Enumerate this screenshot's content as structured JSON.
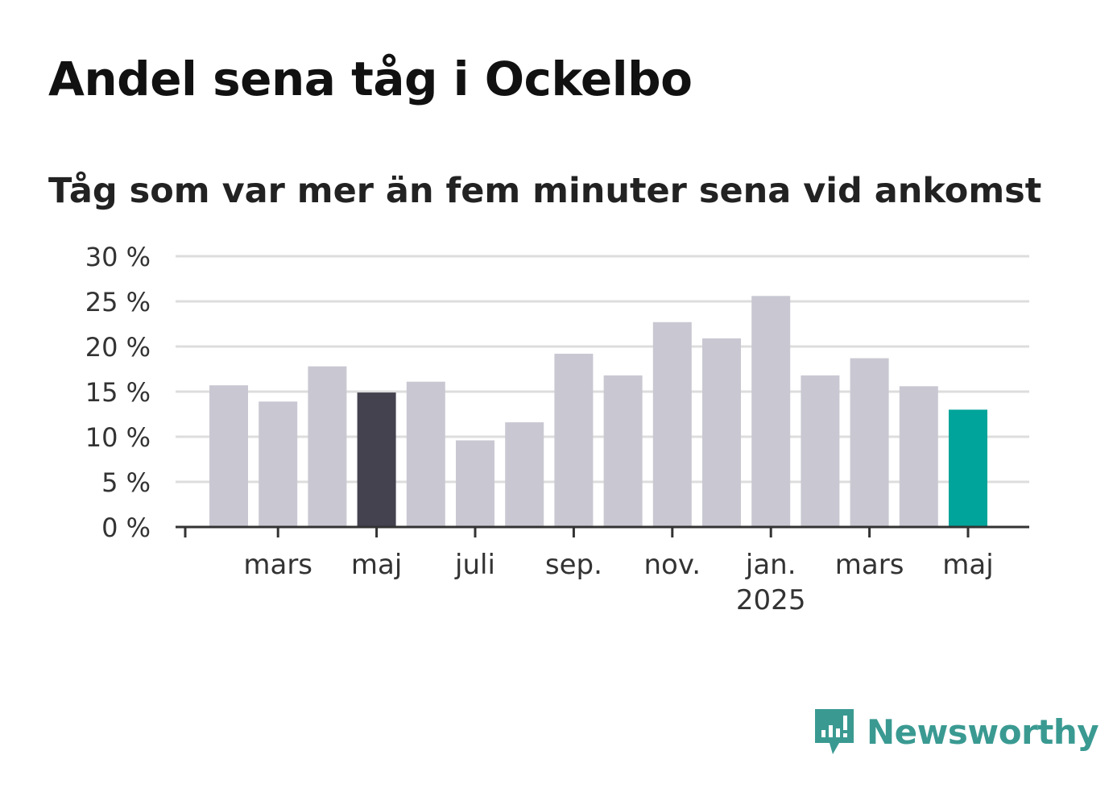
{
  "title": "Andel sena tåg i Ockelbo",
  "subtitle": "Tåg som var mer än fem minuter sena vid ankomst",
  "brand": {
    "name": "Newsworthy",
    "icon": "newsworthy-logo-icon",
    "color": "#3a9a92"
  },
  "chart_data": {
    "type": "bar",
    "categories": [
      "feb. 2024",
      "mars 2024",
      "apr. 2024",
      "maj 2024",
      "juni 2024",
      "juli 2024",
      "aug. 2024",
      "sep. 2024",
      "okt. 2024",
      "nov. 2024",
      "dec. 2024",
      "jan. 2025",
      "feb. 2025",
      "mars 2025",
      "apr. 2025",
      "maj 2025"
    ],
    "values": [
      15.7,
      13.9,
      17.8,
      14.9,
      16.1,
      9.6,
      11.6,
      19.2,
      16.8,
      22.7,
      20.9,
      25.6,
      16.8,
      18.7,
      15.6,
      13.0
    ],
    "ylim": [
      0,
      30
    ],
    "yticks": [
      0,
      5,
      10,
      15,
      20,
      25,
      30
    ],
    "ytick_labels": [
      "0 %",
      "5 %",
      "10 %",
      "15 %",
      "20 %",
      "25 %",
      "30 %"
    ],
    "xtick_labels": [
      {
        "label": "mars",
        "index": 1
      },
      {
        "label": "maj",
        "index": 3
      },
      {
        "label": "juli",
        "index": 5
      },
      {
        "label": "sep.",
        "index": 7
      },
      {
        "label": "nov.",
        "index": 9
      },
      {
        "label": "jan.",
        "sublabel": "2025",
        "index": 11
      },
      {
        "label": "mars",
        "index": 13
      },
      {
        "label": "maj",
        "index": 15
      }
    ],
    "colors": {
      "default": "#c9c8d2",
      "last_year": "#44424f",
      "latest": "#00a49a",
      "grid": "#dddddd",
      "axis": "#333333"
    },
    "highlight": {
      "last_year_index": 3,
      "latest_index": 15
    },
    "grid": true,
    "legend": "none"
  }
}
